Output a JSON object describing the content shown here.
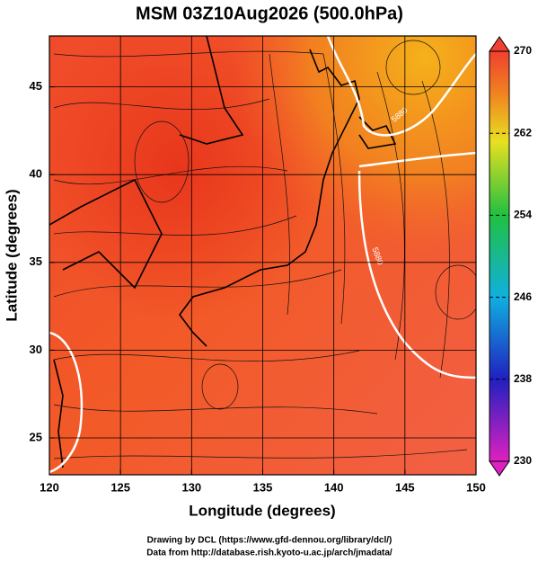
{
  "title": "MSM 03Z10Aug2026 (500.0hPa)",
  "map": {
    "xlabel": "Longitude (degrees)",
    "ylabel": "Latitude  (degrees)",
    "xlim": [
      120,
      150
    ],
    "ylim": [
      22.9,
      47.9
    ],
    "xticks": [
      120,
      125,
      130,
      135,
      140,
      145,
      150
    ],
    "yticks": [
      25,
      30,
      35,
      40,
      45
    ],
    "contour_labels": [
      "5880",
      "5880"
    ]
  },
  "colorbar": {
    "lim": [
      230,
      270
    ],
    "ticks": [
      230,
      238,
      246,
      254,
      262,
      270
    ]
  },
  "footer": [
    "Drawing by DCL (https://www.gfd-dennou.org/library/dcl/)",
    "Data from http://database.rish.kyoto-u.ac.jp/arch/jmadata/"
  ]
}
